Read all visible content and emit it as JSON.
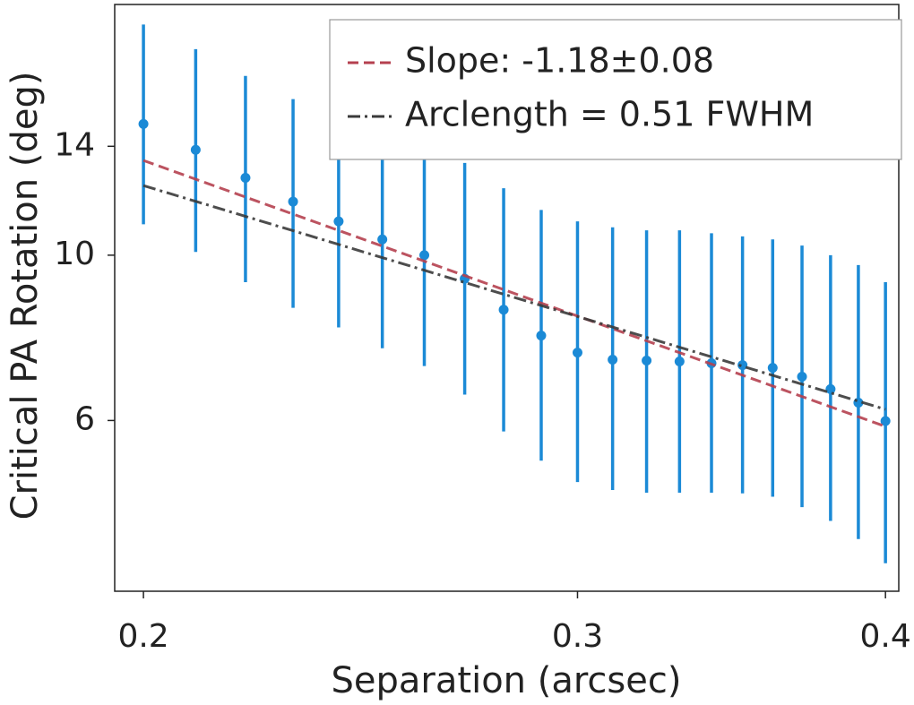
{
  "chart_data": {
    "type": "errorbar",
    "xlabel": "Separation (arcsec)",
    "ylabel": "Critical PA Rotation (deg)",
    "xscale": "log",
    "yscale": "log",
    "xlim": [
      0.1947,
      0.405
    ],
    "ylim": [
      3.54,
      21.7
    ],
    "xticks": [
      0.2,
      0.3,
      0.4
    ],
    "yticks": [
      6,
      10,
      14
    ],
    "legend": "upper right",
    "x": [
      0.2,
      0.21,
      0.22,
      0.23,
      0.24,
      0.25,
      0.26,
      0.27,
      0.28,
      0.29,
      0.3,
      0.31,
      0.32,
      0.33,
      0.34,
      0.35,
      0.36,
      0.37,
      0.38,
      0.39,
      0.4
    ],
    "series": [
      {
        "color": "#1b8ad6",
        "values": [
          15.0,
          13.85,
          12.7,
          11.8,
          11.1,
          10.5,
          10.0,
          9.3,
          8.45,
          7.8,
          7.4,
          7.24,
          7.22,
          7.2,
          7.16,
          7.12,
          7.06,
          6.87,
          6.61,
          6.34,
          5.99
        ],
        "lower": [
          11.0,
          10.1,
          9.2,
          8.5,
          8.0,
          7.5,
          7.1,
          6.5,
          5.8,
          5.3,
          4.96,
          4.84,
          4.8,
          4.8,
          4.8,
          4.79,
          4.74,
          4.59,
          4.4,
          4.16,
          3.86
        ],
        "upper": [
          20.4,
          18.9,
          17.4,
          16.2,
          15.4,
          14.6,
          14.0,
          13.3,
          12.3,
          11.5,
          11.1,
          10.9,
          10.8,
          10.8,
          10.7,
          10.6,
          10.5,
          10.3,
          10.0,
          9.7,
          9.2
        ]
      }
    ],
    "lines": [
      {
        "name": "Slope: -1.18±0.08",
        "color": "#b5404f",
        "dash": "dashed",
        "x": [
          0.2,
          0.4
        ],
        "values": [
          13.4,
          5.89
        ]
      },
      {
        "name": "Arclength = 0.51 FWHM",
        "color": "#3a3a3a",
        "dash": "dashdot",
        "x": [
          0.2,
          0.4
        ],
        "values": [
          12.4,
          6.21
        ]
      }
    ]
  }
}
